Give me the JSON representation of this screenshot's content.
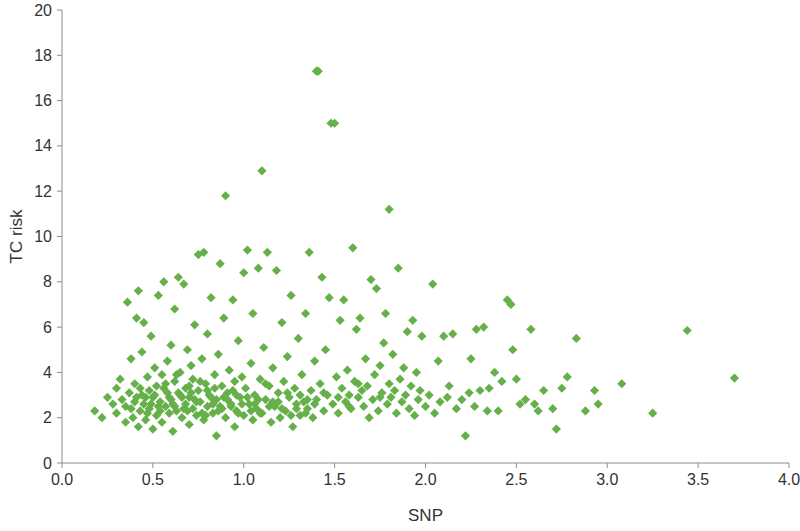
{
  "chart_data": {
    "type": "scatter",
    "x_label": "SNP",
    "y_label": "TC risk",
    "color": "#66b04a",
    "marker": "diamond",
    "grid": false,
    "xlim": [
      0,
      4
    ],
    "ylim": [
      0,
      20
    ],
    "xticks": [
      {
        "value": 0,
        "label": "0.0"
      },
      0.5,
      {
        "value": 1,
        "label": "1.0"
      },
      1.5,
      {
        "value": 2,
        "label": "2.0"
      },
      2.5,
      {
        "value": 3,
        "label": "3.0"
      },
      3.5,
      {
        "value": 4,
        "label": "4.0"
      }
    ],
    "yticks": [
      0,
      2,
      4,
      6,
      8,
      10,
      12,
      14,
      16,
      18,
      20
    ],
    "x": [
      0.18,
      0.22,
      0.25,
      0.28,
      0.3,
      0.3,
      0.32,
      0.33,
      0.35,
      0.35,
      0.36,
      0.37,
      0.38,
      0.39,
      0.4,
      0.4,
      0.41,
      0.42,
      0.42,
      0.43,
      0.44,
      0.44,
      0.45,
      0.45,
      0.46,
      0.47,
      0.48,
      0.48,
      0.49,
      0.5,
      0.5,
      0.51,
      0.52,
      0.52,
      0.53,
      0.54,
      0.55,
      0.55,
      0.56,
      0.57,
      0.58,
      0.58,
      0.59,
      0.6,
      0.6,
      0.61,
      0.62,
      0.62,
      0.63,
      0.64,
      0.65,
      0.65,
      0.66,
      0.67,
      0.68,
      0.68,
      0.69,
      0.7,
      0.7,
      0.71,
      0.72,
      0.72,
      0.73,
      0.74,
      0.75,
      0.75,
      0.76,
      0.77,
      0.78,
      0.78,
      0.79,
      0.8,
      0.8,
      0.81,
      0.82,
      0.83,
      0.84,
      0.85,
      0.85,
      0.86,
      0.87,
      0.88,
      0.88,
      0.89,
      0.9,
      0.9,
      0.91,
      0.92,
      0.93,
      0.94,
      0.95,
      0.95,
      0.96,
      0.97,
      0.98,
      0.99,
      1.0,
      1.0,
      1.01,
      1.02,
      1.03,
      1.04,
      1.05,
      1.05,
      1.06,
      1.07,
      1.08,
      1.09,
      1.1,
      1.1,
      1.11,
      1.12,
      1.13,
      1.14,
      1.15,
      1.16,
      1.17,
      1.18,
      1.19,
      1.2,
      1.21,
      1.22,
      1.23,
      1.24,
      1.25,
      1.26,
      1.27,
      1.28,
      1.29,
      1.3,
      1.31,
      1.32,
      1.33,
      1.34,
      1.35,
      1.36,
      1.37,
      1.38,
      1.39,
      1.4,
      1.41,
      1.4,
      1.42,
      1.43,
      1.44,
      1.45,
      1.46,
      1.47,
      1.48,
      1.5,
      1.49,
      1.51,
      1.52,
      1.53,
      1.54,
      1.55,
      1.56,
      1.57,
      1.58,
      1.59,
      1.6,
      1.61,
      1.62,
      1.63,
      1.64,
      1.65,
      1.66,
      1.67,
      1.68,
      1.7,
      1.71,
      1.72,
      1.73,
      1.74,
      1.75,
      1.76,
      1.77,
      1.78,
      1.79,
      1.8,
      1.8,
      1.81,
      1.82,
      1.83,
      1.84,
      1.85,
      1.86,
      1.87,
      1.88,
      1.89,
      1.9,
      1.91,
      1.92,
      1.93,
      1.94,
      1.95,
      1.96,
      1.97,
      1.98,
      2.0,
      2.02,
      2.04,
      2.05,
      2.07,
      2.08,
      2.1,
      2.12,
      2.13,
      2.15,
      2.17,
      2.2,
      2.22,
      2.24,
      2.25,
      2.27,
      2.28,
      2.3,
      2.32,
      2.34,
      2.35,
      2.38,
      2.4,
      2.42,
      2.45,
      2.47,
      2.48,
      2.5,
      2.52,
      2.55,
      2.58,
      2.6,
      2.62,
      2.65,
      2.7,
      2.72,
      2.75,
      2.78,
      2.83,
      2.88,
      2.93,
      2.95,
      3.08,
      3.25,
      3.44,
      3.7,
      0.46,
      0.53,
      0.57,
      0.61,
      0.63,
      0.66,
      0.69,
      0.71,
      0.74,
      0.76,
      0.79,
      0.82,
      0.84,
      0.87,
      0.91,
      0.94,
      0.97,
      1.02,
      1.06,
      1.09,
      1.12,
      1.16,
      1.21,
      1.26,
      1.31,
      1.35,
      1.44,
      1.52,
      1.58,
      1.63,
      1.69,
      1.75,
      0.38,
      0.41,
      0.43,
      0.47,
      0.49,
      0.51,
      0.54,
      0.56,
      0.59,
      0.62,
      0.64,
      0.67,
      0.7,
      0.73,
      0.77,
      0.8,
      0.83,
      0.86,
      0.89,
      0.93,
      0.96,
      0.99,
      1.04,
      1.08,
      1.14,
      1.19,
      1.24,
      1.29,
      1.34,
      1.39
    ],
    "values": [
      2.3,
      2.0,
      2.9,
      2.6,
      3.3,
      2.2,
      3.7,
      2.8,
      1.8,
      2.5,
      7.1,
      3.1,
      4.6,
      2.0,
      2.7,
      3.5,
      6.4,
      1.6,
      7.6,
      2.3,
      3.0,
      4.9,
      2.6,
      6.2,
      1.9,
      3.8,
      2.4,
      3.2,
      5.6,
      2.9,
      1.5,
      4.2,
      2.1,
      3.4,
      7.4,
      2.7,
      3.9,
      1.8,
      8.0,
      2.5,
      3.1,
      4.5,
      2.2,
      5.2,
      2.8,
      1.4,
      3.6,
      6.8,
      2.3,
      8.2,
      3.0,
      4.0,
      2.0,
      7.9,
      2.6,
      3.3,
      5.0,
      2.9,
      1.7,
      4.3,
      2.4,
      3.7,
      6.1,
      2.1,
      3.2,
      9.2,
      2.7,
      4.6,
      9.3,
      1.9,
      3.5,
      2.5,
      5.7,
      3.0,
      7.3,
      2.2,
      3.9,
      2.8,
      1.2,
      4.8,
      8.8,
      2.4,
      3.4,
      6.4,
      2.0,
      11.8,
      3.1,
      4.1,
      2.6,
      7.2,
      3.6,
      1.6,
      2.3,
      5.4,
      2.9,
      3.8,
      2.1,
      8.4,
      3.3,
      9.4,
      2.6,
      4.4,
      1.9,
      6.6,
      3.0,
      2.4,
      8.6,
      3.7,
      12.9,
      2.2,
      5.1,
      2.8,
      9.3,
      3.4,
      1.8,
      4.2,
      2.5,
      8.5,
      3.1,
      2.0,
      6.2,
      3.6,
      2.3,
      4.7,
      2.9,
      7.4,
      1.6,
      3.3,
      2.6,
      5.5,
      2.1,
      3.9,
      2.7,
      6.6,
      2.4,
      9.3,
      3.2,
      2.0,
      4.5,
      17.3,
      17.3,
      2.8,
      3.5,
      8.2,
      2.3,
      5.0,
      3.0,
      7.3,
      15.0,
      15.0,
      2.6,
      3.8,
      2.2,
      6.3,
      3.3,
      7.2,
      2.7,
      4.1,
      3.0,
      2.4,
      9.5,
      3.6,
      5.9,
      2.9,
      6.4,
      3.2,
      2.5,
      4.6,
      3.4,
      8.1,
      2.8,
      3.9,
      7.7,
      2.3,
      4.3,
      3.1,
      5.3,
      6.6,
      2.6,
      11.2,
      3.5,
      2.9,
      4.8,
      3.2,
      2.2,
      8.6,
      3.7,
      2.7,
      4.2,
      3.0,
      5.8,
      2.4,
      3.4,
      6.3,
      2.1,
      4.0,
      2.8,
      3.2,
      5.6,
      2.5,
      3.0,
      7.9,
      2.2,
      4.5,
      2.7,
      5.6,
      2.9,
      3.4,
      5.7,
      2.4,
      2.8,
      1.2,
      3.1,
      4.6,
      2.5,
      5.9,
      3.2,
      6.0,
      2.3,
      3.3,
      4.0,
      2.3,
      3.6,
      7.2,
      7.0,
      5.0,
      3.7,
      2.6,
      2.8,
      5.9,
      2.6,
      2.3,
      3.2,
      2.4,
      1.5,
      3.3,
      3.8,
      5.5,
      2.3,
      3.2,
      2.6,
      3.5,
      2.2,
      5.85,
      3.75,
      2.9,
      2.5,
      3.5,
      2.6,
      3.9,
      2.9,
      2.3,
      3.1,
      2.7,
      3.6,
      2.1,
      2.9,
      3.3,
      2.5,
      2.8,
      3.2,
      2.2,
      2.9,
      2.6,
      2.2,
      3.5,
      2.7,
      2.4,
      2.1,
      3.0,
      2.8,
      3.1,
      2.9,
      2.5,
      3.5,
      2.0,
      2.9,
      2.4,
      2.9,
      3.3,
      2.2,
      2.6,
      3.0,
      2.3,
      3.3,
      2.9,
      2.5,
      3.1,
      2.4,
      3.4,
      2.8,
      2.2,
      3.2,
      2.6,
      2.3,
      2.9,
      2.5,
      3.0,
      2.6,
      2.3,
      2.8,
      2.5,
      2.7,
      3.1,
      2.4,
      2.2,
      2.6
    ]
  }
}
